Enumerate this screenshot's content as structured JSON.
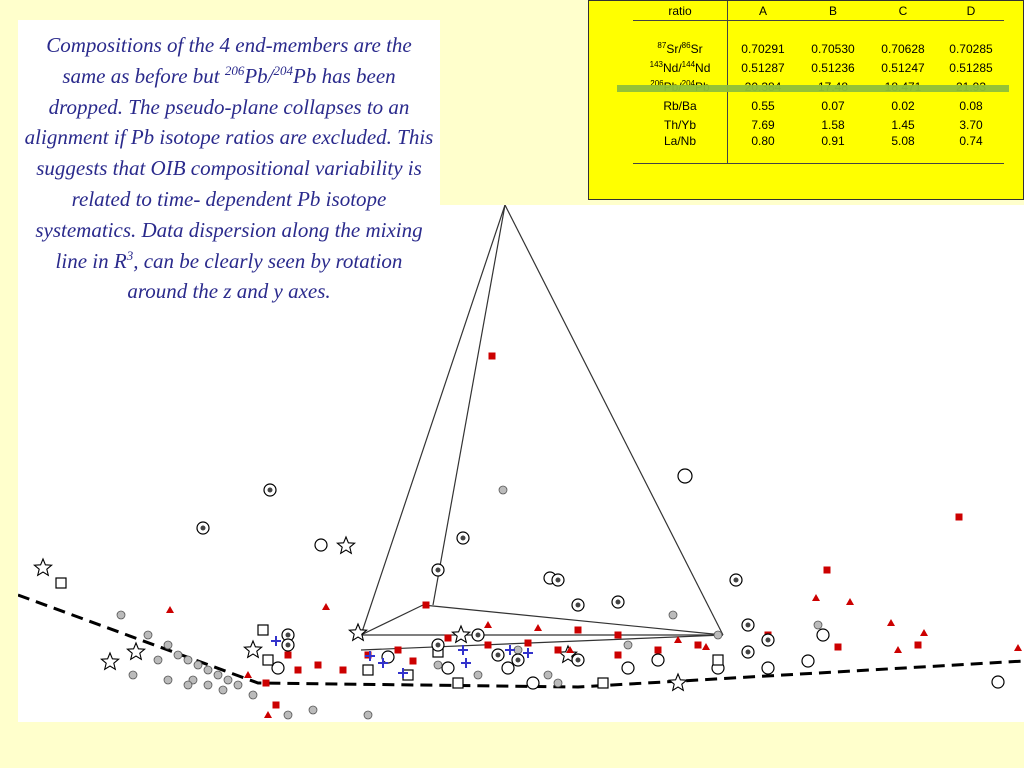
{
  "caption": {
    "line1": "Compositions of the 4 end-members are the same as before but ",
    "sup1": "206",
    "mid1": "Pb/",
    "sup2": "204",
    "mid2": "Pb has been dropped. The pseudo-plane collapses to an alignment if Pb isotope ratios are excluded. This suggests that OIB compositional variability is related to time- dependent Pb isotope systematics. Data dispersion along the mixing line in R",
    "sup3": "3",
    "end": ", can be clearly seen by rotation around the z and y axes."
  },
  "table": {
    "headers": [
      "ratio",
      "A",
      "B",
      "C",
      "D"
    ],
    "rows": [
      {
        "pre": "87",
        "a": "Sr/",
        "pre2": "86",
        "b": "Sr",
        "values": [
          "0.70291",
          "0.70530",
          "0.70628",
          "0.70285"
        ]
      },
      {
        "pre": "143",
        "a": "Nd/",
        "pre2": "144",
        "b": "Nd",
        "values": [
          "0.51287",
          "0.51236",
          "0.51247",
          "0.51285"
        ]
      },
      {
        "pre": "206",
        "a": "Pb/",
        "pre2": "204",
        "b": "Pb",
        "values": [
          "20.384",
          "17.48",
          "18.471",
          "21.93"
        ]
      },
      {
        "pre": "",
        "a": "Rb/Ba",
        "pre2": "",
        "b": "",
        "values": [
          "0.55",
          "0.07",
          "0.02",
          "0.08"
        ]
      },
      {
        "pre": "",
        "a": "Th/Yb",
        "pre2": "",
        "b": "",
        "values": [
          "7.69",
          "1.58",
          "1.45",
          "3.70"
        ]
      },
      {
        "pre": "",
        "a": "La/Nb",
        "pre2": "",
        "b": "",
        "values": [
          "0.80",
          "0.91",
          "5.08",
          "0.74"
        ]
      }
    ],
    "struck_row": 2
  },
  "colors": {
    "background": "#ffffcc",
    "caption_text": "#2a2a8c",
    "table_bg": "#ffff00",
    "strike": "#8fbf3a",
    "red_marker": "#cc0000",
    "blue_marker": "#3333cc"
  },
  "chart_data": {
    "type": "scatter",
    "description_symbols": [
      "open-circle",
      "open-square",
      "star",
      "red-square",
      "red-triangle",
      "gray-dot",
      "bullseye",
      "blue-plus"
    ],
    "axes_visible": false
  }
}
